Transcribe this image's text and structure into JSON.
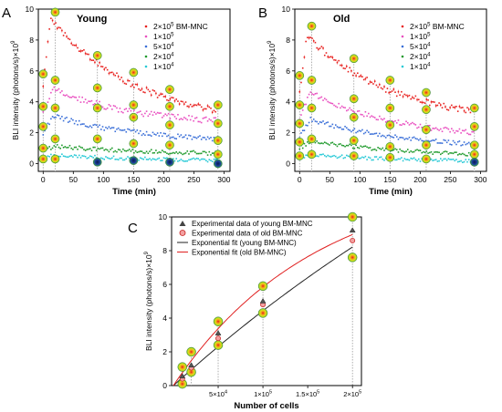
{
  "colors": {
    "s2e5": "#e8201e",
    "s1e5": "#e94fc0",
    "s5e4": "#3a6fd8",
    "s2e4": "#1f9a2c",
    "s1e4": "#27c9d6",
    "black": "#000000",
    "fit_young": "#222222",
    "fit_old": "#e02020",
    "grid": "#9a9a9a"
  },
  "chart_data": [
    {
      "type": "scatter",
      "panel_letter": "A",
      "title": "Young",
      "xlabel": "Time (min)",
      "ylabel": "BLI intensity (photons/s)×10",
      "ylabel_exp": "9",
      "xlim": [
        -8,
        310
      ],
      "ylim": [
        -0.5,
        10
      ],
      "x_ticks": [
        0,
        50,
        100,
        150,
        200,
        250,
        300
      ],
      "y_ticks": [
        0,
        2,
        4,
        6,
        8,
        10
      ],
      "legend_position": "top-right",
      "legend": [
        {
          "coef": "2×10",
          "exp": "5",
          "suffix": " BM-MNC",
          "color_key": "s2e5"
        },
        {
          "coef": "1×10",
          "exp": "5",
          "suffix": "",
          "color_key": "s1e5"
        },
        {
          "coef": "5×10",
          "exp": "4",
          "suffix": "",
          "color_key": "s5e4"
        },
        {
          "coef": "2×10",
          "exp": "4",
          "suffix": "",
          "color_key": "s2e4"
        },
        {
          "coef": "1×10",
          "exp": "4",
          "suffix": "",
          "color_key": "s1e4"
        }
      ],
      "series": [
        {
          "color_key": "s2e5",
          "a": 2.4,
          "b": 7.6,
          "tau": 145,
          "peak_time": 12,
          "start": 5.2
        },
        {
          "color_key": "s1e5",
          "a": 2.4,
          "b": 2.7,
          "tau": 145,
          "peak_time": 16,
          "start": 3.2
        },
        {
          "color_key": "s5e4",
          "a": 1.3,
          "b": 2.0,
          "tau": 150,
          "peak_time": 18,
          "start": 2.0
        },
        {
          "color_key": "s2e4",
          "a": 0.55,
          "b": 0.65,
          "tau": 170,
          "peak_time": 20,
          "start": 0.9
        },
        {
          "color_key": "s1e4",
          "a": 0.15,
          "b": 0.45,
          "tau": 160,
          "peak_time": 20,
          "start": 0.4
        }
      ],
      "image_times": [
        0,
        20,
        90,
        150,
        210,
        290
      ],
      "image_values": [
        [
          5.8,
          9.8,
          7.0,
          5.9,
          4.8,
          3.8
        ],
        [
          3.7,
          5.4,
          4.9,
          3.8,
          3.7,
          2.6
        ],
        [
          2.4,
          3.6,
          3.6,
          3.0,
          2.5,
          1.5
        ],
        [
          1.0,
          1.6,
          1.6,
          1.3,
          1.2,
          0.6
        ],
        [
          0.3,
          0.3,
          0.1,
          0.2,
          0.1,
          0.0
        ]
      ]
    },
    {
      "type": "scatter",
      "panel_letter": "B",
      "title": "Old",
      "xlabel": "Time (min)",
      "ylabel": "BLI intensity (photons/s)×10",
      "ylabel_exp": "9",
      "xlim": [
        -8,
        310
      ],
      "ylim": [
        -0.5,
        10
      ],
      "x_ticks": [
        0,
        50,
        100,
        150,
        200,
        250,
        300
      ],
      "y_ticks": [
        0,
        2,
        4,
        6,
        8,
        10
      ],
      "legend_position": "top-right",
      "legend": [
        {
          "coef": "2×10",
          "exp": "5",
          "suffix": " BM-MNC",
          "color_key": "s2e5"
        },
        {
          "coef": "1×10",
          "exp": "5",
          "suffix": "",
          "color_key": "s1e5"
        },
        {
          "coef": "5×10",
          "exp": "4",
          "suffix": "",
          "color_key": "s5e4"
        },
        {
          "coef": "2×10",
          "exp": "4",
          "suffix": "",
          "color_key": "s2e4"
        },
        {
          "coef": "1×10",
          "exp": "4",
          "suffix": "",
          "color_key": "s1e4"
        }
      ],
      "series": [
        {
          "color_key": "s2e5",
          "a": 2.6,
          "b": 6.2,
          "tau": 140,
          "peak_time": 12,
          "start": 4.6
        },
        {
          "color_key": "s1e5",
          "a": 1.5,
          "b": 3.5,
          "tau": 150,
          "peak_time": 16,
          "start": 2.8
        },
        {
          "color_key": "s5e4",
          "a": 0.9,
          "b": 2.2,
          "tau": 160,
          "peak_time": 18,
          "start": 1.8
        },
        {
          "color_key": "s2e4",
          "a": 0.4,
          "b": 1.2,
          "tau": 170,
          "peak_time": 20,
          "start": 1.0
        },
        {
          "color_key": "s1e4",
          "a": 0.1,
          "b": 0.55,
          "tau": 150,
          "peak_time": 20,
          "start": 0.4
        }
      ],
      "image_times": [
        0,
        20,
        90,
        150,
        210,
        290
      ],
      "image_values": [
        [
          5.7,
          8.9,
          6.8,
          5.4,
          4.6,
          3.6
        ],
        [
          3.8,
          5.4,
          4.2,
          3.6,
          3.5,
          2.4
        ],
        [
          2.6,
          3.6,
          3.0,
          2.5,
          2.2,
          1.2
        ],
        [
          1.4,
          1.6,
          1.5,
          1.1,
          1.2,
          0.6
        ],
        [
          0.5,
          0.6,
          0.5,
          0.4,
          0.3,
          0.1
        ]
      ]
    },
    {
      "type": "scatter",
      "panel_letter": "C",
      "xlabel": "Number of cells",
      "ylabel": "BLI intensity (photons/s)×10",
      "ylabel_exp": "9",
      "xlim": [
        -2000,
        210000
      ],
      "ylim": [
        0,
        10
      ],
      "x_ticks": [
        {
          "value": 50000,
          "coef": "5×10",
          "exp": "4"
        },
        {
          "value": 100000,
          "coef": "1×10",
          "exp": "5"
        },
        {
          "value": 150000,
          "coef": "1.5×10",
          "exp": "5"
        },
        {
          "value": 200000,
          "coef": "2×10",
          "exp": "5"
        }
      ],
      "y_ticks": [
        0,
        2,
        4,
        6,
        8,
        10
      ],
      "legend_position": "top-left",
      "legend": [
        {
          "label": "Experimental data of young BM-MNC",
          "marker": "triangle"
        },
        {
          "label": "Experimental data of old BM-MNC",
          "marker": "circle"
        },
        {
          "label": "Exponential fit (young BM-MNC)",
          "marker": "line-black"
        },
        {
          "label": "Exponential fit (old BM-MNC)",
          "marker": "line-red"
        }
      ],
      "cells": [
        10000,
        20000,
        50000,
        100000,
        200000
      ],
      "young_values": [
        0.55,
        1.2,
        3.1,
        5.0,
        9.2
      ],
      "old_values": [
        0.4,
        1.05,
        2.8,
        4.8,
        8.6
      ],
      "young_fit": {
        "a": 30,
        "k": 1.6e-06
      },
      "old_fit": {
        "a": 12.5,
        "k": 6.3e-06
      },
      "image_values": [
        [
          1.1,
          2.0,
          3.8,
          5.9,
          10.0
        ],
        [
          0.1,
          0.8,
          2.4,
          4.3,
          7.6
        ]
      ]
    }
  ]
}
